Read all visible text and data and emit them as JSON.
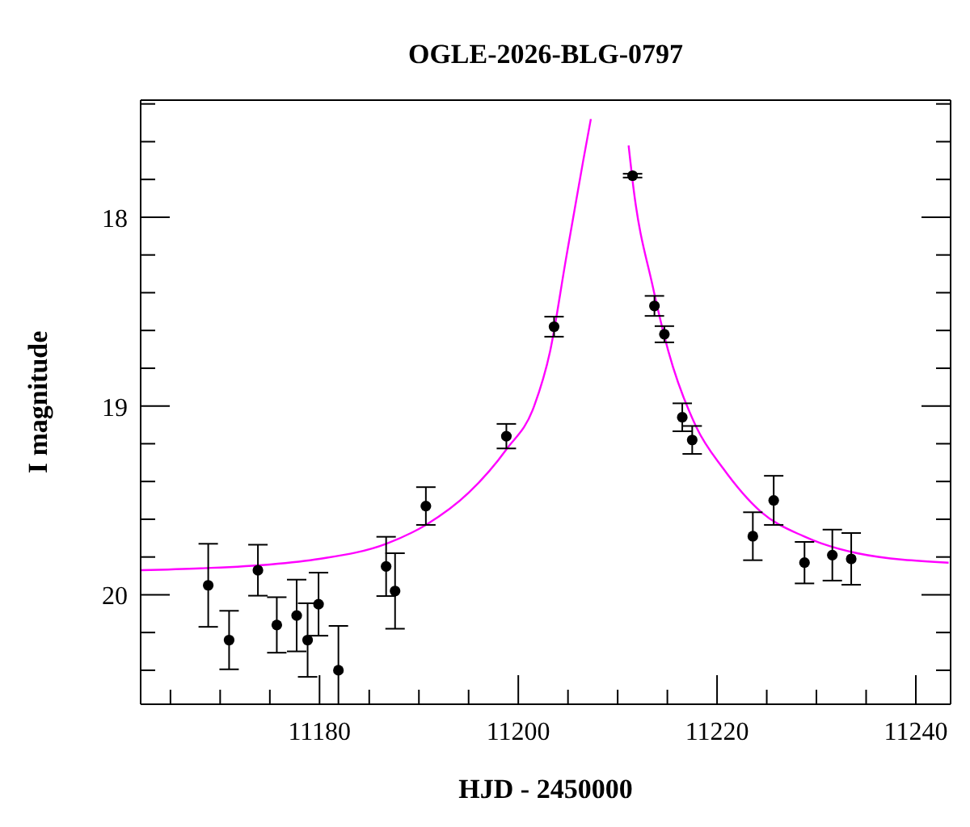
{
  "chart_data": {
    "type": "scatter",
    "title": "OGLE-2026-BLG-0797",
    "xlabel": "HJD - 2450000",
    "ylabel": "I magnitude",
    "marker": "circle",
    "xlim": [
      11162,
      11243.5
    ],
    "xticks": [
      {
        "value": 11165,
        "label": null
      },
      {
        "value": 11170,
        "label": null
      },
      {
        "value": 11175,
        "label": null
      },
      11180,
      {
        "value": 11185,
        "label": null
      },
      {
        "value": 11190,
        "label": null
      },
      {
        "value": 11195,
        "label": null
      },
      11200,
      {
        "value": 11205,
        "label": null
      },
      {
        "value": 11210,
        "label": null
      },
      {
        "value": 11215,
        "label": null
      },
      11220,
      {
        "value": 11225,
        "label": null
      },
      {
        "value": 11230,
        "label": null
      },
      {
        "value": 11235,
        "label": null
      },
      11240
    ],
    "ylim": [
      20.58,
      17.38
    ],
    "yticks": [
      {
        "value": 17.4,
        "label": null
      },
      {
        "value": 17.6,
        "label": null
      },
      {
        "value": 17.8,
        "label": null
      },
      18,
      {
        "value": 18.2,
        "label": null
      },
      {
        "value": 18.4,
        "label": null
      },
      {
        "value": 18.6,
        "label": null
      },
      {
        "value": 18.8,
        "label": null
      },
      19,
      {
        "value": 19.2,
        "label": null
      },
      {
        "value": 19.4,
        "label": null
      },
      {
        "value": 19.6,
        "label": null
      },
      {
        "value": 19.8,
        "label": null
      },
      20,
      {
        "value": 20.2,
        "label": null
      },
      {
        "value": 20.4,
        "label": null
      }
    ],
    "series": [
      {
        "color": "#000000",
        "x": [
          11168.8,
          11170.9,
          11173.8,
          11175.7,
          11177.7,
          11178.8,
          11179.9,
          11181.9,
          11186.7,
          11187.6,
          11190.7,
          11198.8,
          11203.6,
          11211.5,
          11213.7,
          11214.7,
          11216.5,
          11217.5,
          11223.6,
          11225.7,
          11228.8,
          11231.6,
          11233.5
        ],
        "values": [
          19.95,
          20.24,
          19.87,
          20.16,
          20.11,
          20.24,
          20.05,
          20.4,
          19.85,
          19.98,
          19.53,
          19.16,
          18.58,
          17.78,
          18.47,
          18.62,
          19.06,
          19.18,
          19.69,
          19.5,
          19.83,
          19.79,
          19.81
        ],
        "errors": [
          0.22,
          0.155,
          0.135,
          0.147,
          0.19,
          0.195,
          0.167,
          [
            20.165,
            20.58
          ],
          0.157,
          0.2,
          0.1,
          0.065,
          0.053,
          0.01,
          0.053,
          0.043,
          0.074,
          0.074,
          0.127,
          0.13,
          0.11,
          0.135,
          0.137
        ]
      },
      {
        "type": "line",
        "marker": "none",
        "color": "#ff00ff",
        "x": [
          11162,
          11168,
          11175,
          11180,
          11186.7,
          11190.7,
          11195,
          11198.8,
          11201.6,
          11203.2,
          11204.8,
          11206.5,
          11207.3,
          11209.2,
          11211.1,
          11211.6,
          11213.5,
          11215.1,
          11217.9,
          11220.6,
          11224.4,
          11228.7,
          11234.1,
          11243.3
        ],
        "values": [
          19.87,
          19.86,
          19.84,
          19.81,
          19.73,
          19.63,
          19.46,
          19.23,
          19.0,
          18.71,
          18.22,
          17.71,
          17.48,
          null,
          17.62,
          17.85,
          18.36,
          18.71,
          19.11,
          19.33,
          19.56,
          19.69,
          19.78,
          19.83
        ]
      }
    ]
  }
}
